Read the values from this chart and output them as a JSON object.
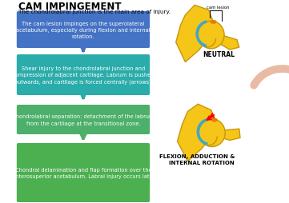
{
  "title": "CAM IMPINGEMENT",
  "subtitle": "The chondrolabral junction is the main area of injury.",
  "boxes": [
    {
      "text": "The cam lesion impinges on the superolateral\nacetabulum, especially during flexion and internal\nrotation.",
      "color": "#4472C4"
    },
    {
      "text": "Shear injury to the chondrolabral junction and\ncompression of adjacent cartilage. Labrum is pushed\noutwards, and cartilage is forced centrally (arrows).",
      "color": "#2AACAA"
    },
    {
      "text": "Chondrolabral separation: detachment of the labrum\nfrom the cartilage at the transitional zone.",
      "color": "#4CAF6A"
    },
    {
      "text": "Chondral delamination and flap formation over the\nanterosuperior acetabulum. Labral injury occurs late.",
      "color": "#4CAF50"
    }
  ],
  "box_arrow_colors": [
    "#4472C4",
    "#2AACAA",
    "#4CAF6A"
  ],
  "neutral_label": "NEUTRAL",
  "flexion_label": "FLEXION, ADDUCTION &\nINTERNAL ROTATION",
  "cam_lesion_label": "cam lesion",
  "background_color": "#ffffff",
  "hip_color": "#F5C518",
  "hip_outline": "#C8960A",
  "labrum_color": "#3BA8CC",
  "orange_highlight": "#E87A00",
  "curved_arrow_color": "#E8B49A"
}
